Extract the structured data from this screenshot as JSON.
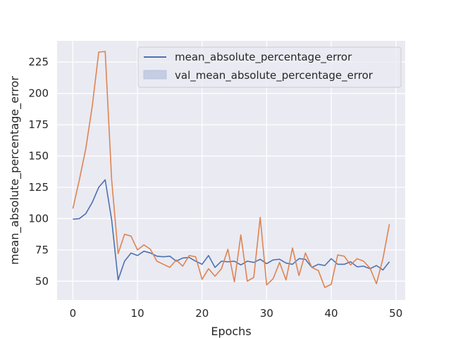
{
  "chart_data": {
    "type": "line",
    "title": "",
    "xlabel": "Epochs",
    "ylabel": "mean_absolute_percentage_error",
    "xlim": [
      -2.45,
      51.45
    ],
    "ylim": [
      35,
      242
    ],
    "xticks": [
      0,
      10,
      20,
      30,
      40,
      50
    ],
    "yticks": [
      50,
      75,
      100,
      125,
      150,
      175,
      200,
      225
    ],
    "grid": true,
    "legend_position": "top-right",
    "x": [
      0,
      1,
      2,
      3,
      4,
      5,
      6,
      7,
      8,
      9,
      10,
      11,
      12,
      13,
      14,
      15,
      16,
      17,
      18,
      19,
      20,
      21,
      22,
      23,
      24,
      25,
      26,
      27,
      28,
      29,
      30,
      31,
      32,
      33,
      34,
      35,
      36,
      37,
      38,
      39,
      40,
      41,
      42,
      43,
      44,
      45,
      46,
      47,
      48,
      49
    ],
    "series": [
      {
        "name": "mean_absolute_percentage_error",
        "color": "#4c72b0",
        "values": [
          99.5,
          100,
          104,
          113,
          125,
          131,
          99,
          51,
          66,
          72.5,
          70.5,
          74,
          72.5,
          70,
          69.5,
          70,
          66,
          68.5,
          69,
          66,
          63.5,
          70.5,
          61,
          66,
          65.5,
          66,
          63,
          66,
          65,
          67.5,
          64,
          67,
          67.5,
          64.5,
          63.5,
          68,
          67.5,
          61,
          63.5,
          62.5,
          68,
          63.5,
          63.5,
          65.5,
          61.5,
          62,
          60,
          62.5,
          59,
          65.5
        ]
      },
      {
        "name": "val_mean_absolute_percentage_error",
        "color": "#dd8452",
        "values": [
          108,
          131,
          156,
          190,
          233,
          233.5,
          131,
          72,
          87.5,
          86,
          75,
          79,
          75.5,
          66,
          63.5,
          61,
          67,
          62,
          70.5,
          69.5,
          51.5,
          60,
          54,
          60,
          75.5,
          49.5,
          87,
          50,
          53,
          101,
          47,
          52,
          65,
          51,
          76.5,
          54.5,
          72.5,
          61,
          58.5,
          45,
          47.5,
          71,
          70,
          63,
          68,
          66,
          60.5,
          48,
          68,
          95.5
        ]
      }
    ]
  }
}
